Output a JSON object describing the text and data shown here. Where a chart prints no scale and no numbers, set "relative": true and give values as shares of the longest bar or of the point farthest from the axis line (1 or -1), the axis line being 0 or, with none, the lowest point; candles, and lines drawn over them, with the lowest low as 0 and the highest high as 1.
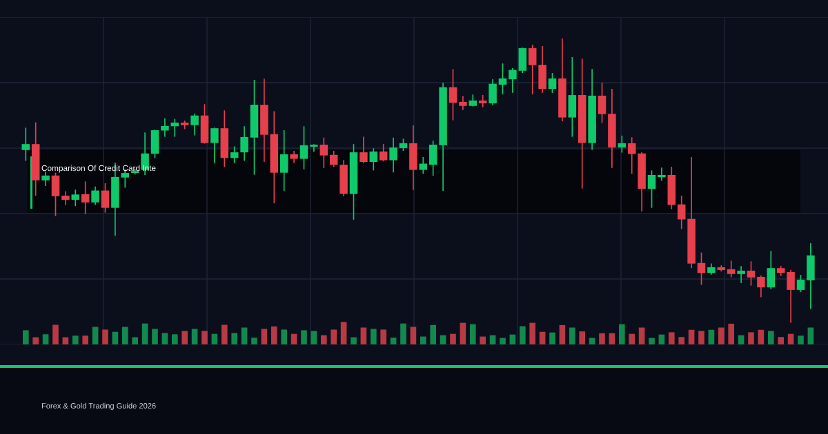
{
  "chart_data": [
    {
      "type": "candlestick",
      "title": "Comparison Of Credit Card Inte",
      "relative": true,
      "grid": true,
      "annotations": [
        "Forex & Gold Trading Guide 2026"
      ],
      "categories": [
        null,
        null,
        null,
        null,
        null,
        null,
        null,
        null,
        null,
        null,
        null,
        null,
        null,
        null,
        null,
        null,
        null,
        null,
        null,
        null,
        null,
        null,
        null,
        null,
        null,
        null,
        null,
        null,
        null,
        null,
        null,
        null,
        null,
        null,
        null,
        null,
        null,
        null,
        null,
        null,
        null,
        null,
        null,
        null,
        null,
        null,
        null,
        null,
        null,
        null,
        null,
        null,
        null,
        null,
        null,
        null,
        null,
        null,
        null,
        null,
        null,
        null,
        null,
        null,
        null,
        null,
        null,
        null,
        null,
        null,
        null,
        null,
        null,
        null,
        null,
        null,
        null,
        null,
        null,
        null
      ],
      "ohlc": [
        [
          0.608,
          0.685,
          0.572,
          0.629
        ],
        [
          0.629,
          0.704,
          0.449,
          0.501
        ],
        [
          0.501,
          0.53,
          0.483,
          0.518
        ],
        [
          0.518,
          0.526,
          0.377,
          0.445
        ],
        [
          0.447,
          0.461,
          0.416,
          0.432
        ],
        [
          0.432,
          0.466,
          0.412,
          0.451
        ],
        [
          0.452,
          0.495,
          0.384,
          0.423
        ],
        [
          0.423,
          0.477,
          0.416,
          0.465
        ],
        [
          0.465,
          0.489,
          0.389,
          0.404
        ],
        [
          0.404,
          0.562,
          0.307,
          0.513
        ],
        [
          0.511,
          0.538,
          0.477,
          0.527
        ],
        [
          0.527,
          0.539,
          0.524,
          0.534
        ],
        [
          0.538,
          0.668,
          0.522,
          0.596
        ],
        [
          0.595,
          0.678,
          0.582,
          0.678
        ],
        [
          0.677,
          0.718,
          0.657,
          0.693
        ],
        [
          0.692,
          0.716,
          0.657,
          0.705
        ],
        [
          0.705,
          0.71,
          0.684,
          0.696
        ],
        [
          0.696,
          0.735,
          0.662,
          0.73
        ],
        [
          0.73,
          0.768,
          0.633,
          0.633
        ],
        [
          0.633,
          0.685,
          0.564,
          0.685
        ],
        [
          0.685,
          0.746,
          0.55,
          0.58
        ],
        [
          0.58,
          0.619,
          0.564,
          0.6
        ],
        [
          0.6,
          0.69,
          0.572,
          0.654
        ],
        [
          0.652,
          0.854,
          0.523,
          0.768
        ],
        [
          0.768,
          0.858,
          0.568,
          0.662
        ],
        [
          0.664,
          0.743,
          0.422,
          0.528
        ],
        [
          0.528,
          0.676,
          0.465,
          0.593
        ],
        [
          0.593,
          0.603,
          0.564,
          0.577
        ],
        [
          0.577,
          0.69,
          0.542,
          0.625
        ],
        [
          0.62,
          0.627,
          0.604,
          0.627
        ],
        [
          0.627,
          0.65,
          0.546,
          0.589
        ],
        [
          0.591,
          0.603,
          0.55,
          0.556
        ],
        [
          0.556,
          0.57,
          0.447,
          0.453
        ],
        [
          0.453,
          0.627,
          0.364,
          0.6
        ],
        [
          0.6,
          0.653,
          0.564,
          0.566
        ],
        [
          0.566,
          0.612,
          0.538,
          0.603
        ],
        [
          0.603,
          0.627,
          0.57,
          0.572
        ],
        [
          0.572,
          0.65,
          0.531,
          0.617
        ],
        [
          0.615,
          0.646,
          0.607,
          0.632
        ],
        [
          0.632,
          0.693,
          0.469,
          0.538
        ],
        [
          0.538,
          0.581,
          0.526,
          0.56
        ],
        [
          0.556,
          0.639,
          0.519,
          0.627
        ],
        [
          0.625,
          0.844,
          0.466,
          0.83
        ],
        [
          0.83,
          0.892,
          0.715,
          0.775
        ],
        [
          0.778,
          0.797,
          0.751,
          0.764
        ],
        [
          0.764,
          0.802,
          0.764,
          0.783
        ],
        [
          0.783,
          0.8,
          0.761,
          0.773
        ],
        [
          0.773,
          0.856,
          0.769,
          0.842
        ],
        [
          0.839,
          0.912,
          0.807,
          0.861
        ],
        [
          0.858,
          0.895,
          0.812,
          0.891
        ],
        [
          0.888,
          0.968,
          0.882,
          0.968
        ],
        [
          0.968,
          0.978,
          0.807,
          0.908
        ],
        [
          0.909,
          0.973,
          0.812,
          0.824
        ],
        [
          0.824,
          0.878,
          0.812,
          0.861
        ],
        [
          0.861,
          1.0,
          0.712,
          0.723
        ],
        [
          0.723,
          0.934,
          0.657,
          0.802
        ],
        [
          0.802,
          0.929,
          0.474,
          0.633
        ],
        [
          0.633,
          0.892,
          0.611,
          0.8
        ],
        [
          0.8,
          0.844,
          0.706,
          0.735
        ],
        [
          0.736,
          0.822,
          0.547,
          0.617
        ],
        [
          0.617,
          0.657,
          0.601,
          0.632
        ],
        [
          0.632,
          0.651,
          0.526,
          0.594
        ],
        [
          0.596,
          0.599,
          0.393,
          0.471
        ],
        [
          0.471,
          0.534,
          0.406,
          0.52
        ],
        [
          0.512,
          0.544,
          0.501,
          0.52
        ],
        [
          0.52,
          0.547,
          0.401,
          0.414
        ],
        [
          0.416,
          0.445,
          0.331,
          0.363
        ],
        [
          0.365,
          0.581,
          0.193,
          0.207
        ],
        [
          0.209,
          0.244,
          0.134,
          0.174
        ],
        [
          0.174,
          0.205,
          0.17,
          0.194
        ],
        [
          0.194,
          0.199,
          0.181,
          0.184
        ],
        [
          0.187,
          0.215,
          0.161,
          0.17
        ],
        [
          0.17,
          0.196,
          0.14,
          0.182
        ],
        [
          0.182,
          0.213,
          0.131,
          0.158
        ],
        [
          0.16,
          0.163,
          0.09,
          0.123
        ],
        [
          0.123,
          0.25,
          0.119,
          0.191
        ],
        [
          0.191,
          0.197,
          0.165,
          0.174
        ],
        [
          0.177,
          0.183,
          0.0,
          0.114
        ],
        [
          0.114,
          0.165,
          0.108,
          0.15
        ],
        [
          0.148,
          0.277,
          0.049,
          0.236
        ]
      ],
      "colors": [
        "#10c96a",
        "#e5404c",
        "#10c96a",
        "#e5404c",
        "#e5404c",
        "#10c96a",
        "#e5404c",
        "#10c96a",
        "#e5404c",
        "#10c96a",
        "#10c96a",
        "#10c96a",
        "#10c96a",
        "#10c96a",
        "#10c96a",
        "#10c96a",
        "#e5404c",
        "#10c96a",
        "#e5404c",
        "#10c96a",
        "#e5404c",
        "#10c96a",
        "#10c96a",
        "#10c96a",
        "#e5404c",
        "#e5404c",
        "#10c96a",
        "#e5404c",
        "#10c96a",
        "#10c96a",
        "#e5404c",
        "#e5404c",
        "#e5404c",
        "#10c96a",
        "#e5404c",
        "#10c96a",
        "#e5404c",
        "#10c96a",
        "#10c96a",
        "#e5404c",
        "#10c96a",
        "#10c96a",
        "#10c96a",
        "#e5404c",
        "#e5404c",
        "#10c96a",
        "#e5404c",
        "#10c96a",
        "#10c96a",
        "#10c96a",
        "#10c96a",
        "#e5404c",
        "#e5404c",
        "#10c96a",
        "#e5404c",
        "#10c96a",
        "#e5404c",
        "#10c96a",
        "#e5404c",
        "#e5404c",
        "#10c96a",
        "#e5404c",
        "#e5404c",
        "#10c96a",
        "#10c96a",
        "#e5404c",
        "#e5404c",
        "#e5404c",
        "#e5404c",
        "#10c96a",
        "#e5404c",
        "#e5404c",
        "#10c96a",
        "#e5404c",
        "#e5404c",
        "#10c96a",
        "#e5404c",
        "#e5404c",
        "#10c96a",
        "#10c96a"
      ]
    },
    {
      "type": "bar",
      "relative": true,
      "categories": [
        null,
        null,
        null,
        null,
        null,
        null,
        null,
        null,
        null,
        null,
        null,
        null,
        null,
        null,
        null,
        null,
        null,
        null,
        null,
        null,
        null,
        null,
        null,
        null,
        null,
        null,
        null,
        null,
        null,
        null,
        null,
        null,
        null,
        null,
        null,
        null,
        null,
        null,
        null,
        null,
        null,
        null,
        null,
        null,
        null,
        null,
        null,
        null,
        null,
        null,
        null,
        null,
        null,
        null,
        null,
        null,
        null,
        null,
        null,
        null,
        null,
        null,
        null,
        null,
        null,
        null,
        null,
        null,
        null,
        null,
        null,
        null,
        null,
        null,
        null,
        null,
        null,
        null,
        null,
        null
      ],
      "values": [
        0.63,
        0.32,
        0.45,
        0.87,
        0.32,
        0.39,
        0.39,
        0.78,
        0.66,
        0.56,
        0.78,
        0.32,
        0.93,
        0.69,
        0.51,
        0.45,
        0.6,
        0.69,
        0.6,
        0.47,
        0.87,
        0.51,
        0.75,
        0.3,
        0.69,
        0.8,
        0.66,
        0.47,
        0.63,
        0.6,
        0.41,
        0.66,
        1.0,
        0.32,
        0.75,
        0.69,
        0.66,
        0.3,
        0.93,
        0.78,
        0.35,
        0.86,
        0.41,
        0.47,
        0.96,
        0.9,
        0.35,
        0.41,
        0.29,
        0.44,
        0.81,
        0.96,
        0.56,
        0.53,
        0.86,
        0.75,
        0.58,
        0.29,
        0.5,
        0.5,
        0.9,
        0.47,
        0.75,
        0.29,
        0.44,
        0.54,
        0.33,
        0.65,
        0.6,
        0.65,
        0.75,
        0.92,
        0.41,
        0.54,
        0.65,
        0.6,
        0.33,
        0.47,
        0.39,
        0.75
      ],
      "colors": [
        "#12894e",
        "#b83a44",
        "#12894e",
        "#b83a44",
        "#b83a44",
        "#12894e",
        "#b83a44",
        "#12894e",
        "#b83a44",
        "#12894e",
        "#12894e",
        "#12894e",
        "#12894e",
        "#12894e",
        "#12894e",
        "#12894e",
        "#b83a44",
        "#12894e",
        "#b83a44",
        "#12894e",
        "#b83a44",
        "#12894e",
        "#12894e",
        "#12894e",
        "#b83a44",
        "#b83a44",
        "#12894e",
        "#b83a44",
        "#12894e",
        "#12894e",
        "#b83a44",
        "#b83a44",
        "#b83a44",
        "#12894e",
        "#b83a44",
        "#12894e",
        "#b83a44",
        "#12894e",
        "#12894e",
        "#b83a44",
        "#12894e",
        "#12894e",
        "#12894e",
        "#b83a44",
        "#b83a44",
        "#12894e",
        "#b83a44",
        "#12894e",
        "#12894e",
        "#12894e",
        "#12894e",
        "#b83a44",
        "#b83a44",
        "#12894e",
        "#b83a44",
        "#12894e",
        "#b83a44",
        "#12894e",
        "#b83a44",
        "#b83a44",
        "#12894e",
        "#b83a44",
        "#b83a44",
        "#12894e",
        "#12894e",
        "#b83a44",
        "#b83a44",
        "#b83a44",
        "#b83a44",
        "#12894e",
        "#b83a44",
        "#b83a44",
        "#12894e",
        "#b83a44",
        "#b83a44",
        "#12894e",
        "#b83a44",
        "#b83a44",
        "#12894e",
        "#12894e"
      ]
    }
  ]
}
